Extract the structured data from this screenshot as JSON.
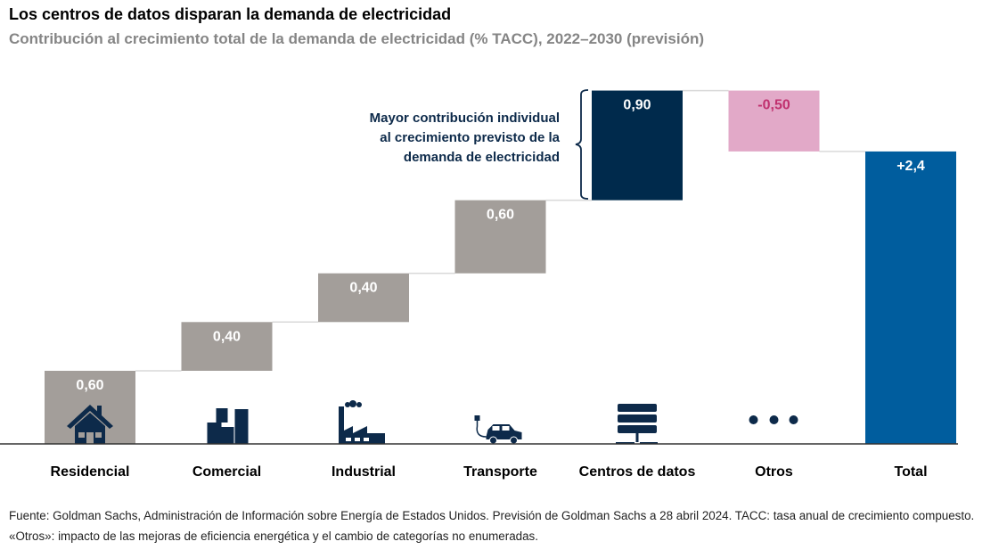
{
  "title": "Los centros de datos disparan la demanda de electricidad",
  "subtitle": "Contribución al crecimiento total de la demanda de electricidad (% TACC), 2022–2030 (previsión)",
  "annotation": "Mayor contribución individual al crecimiento previsto de la demanda de electricidad",
  "footnote": "Fuente: Goldman Sachs, Administración de Información sobre Energía de Estados Unidos. Previsión de Goldman Sachs a 28 abril 2024. TACC: tasa anual de crecimiento compuesto. «Otros»: impacto de las mejoras de eficiencia energética y el cambio de categorías no enumeradas.",
  "chart_data": {
    "type": "waterfall",
    "categories": [
      "Residencial",
      "Comercial",
      "Industrial",
      "Transporte",
      "Centros de datos",
      "Otros",
      "Total"
    ],
    "values": [
      0.6,
      0.4,
      0.4,
      0.6,
      0.9,
      -0.5,
      2.4
    ],
    "labels": [
      "0,60",
      "0,40",
      "0,40",
      "0,60",
      "0,90",
      "-0,50",
      "+2,4"
    ],
    "is_total": [
      false,
      false,
      false,
      false,
      false,
      false,
      true
    ],
    "icons": [
      "house-icon",
      "buildings-icon",
      "factory-icon",
      "electric-car-icon",
      "server-icon",
      "ellipsis-icon",
      ""
    ],
    "colors": {
      "increase": "#a39e9a",
      "highlight": "#002a4c",
      "decrease": "#e2a9c8",
      "decrease_label": "#c0306e",
      "total": "#005d9e",
      "icon": "#0d2a4a"
    },
    "ylim": [
      0,
      2.9
    ]
  }
}
